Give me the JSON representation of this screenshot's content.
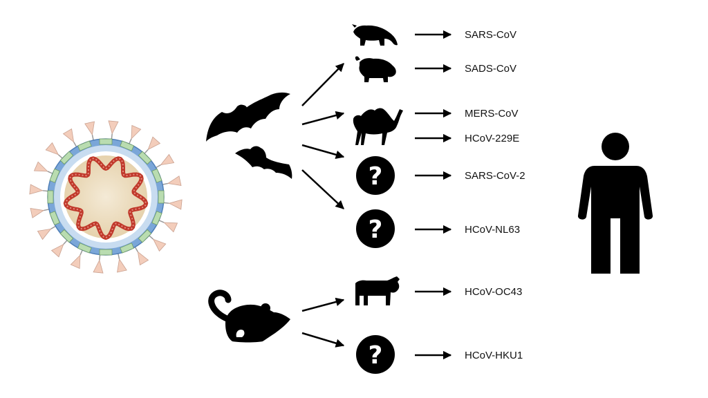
{
  "colors": {
    "ink": "#000000",
    "envelope_outer": "#7aa6d8",
    "envelope_inner": "#c8dcf0",
    "core": "#efe1c6",
    "rna": "#c0392b",
    "protein_green": "#b9dcb0",
    "spike": "#f3cdbb"
  },
  "icons": {
    "virus": "coronavirus-illustration",
    "bat_large": "bat-icon",
    "bat_small": "bat-icon",
    "rodent": "rodent-icon",
    "civet": "civet-icon",
    "pig": "pig-icon",
    "camel": "camel-icon",
    "cow": "cow-icon",
    "unknown": "question-mark-icon",
    "human": "human-icon"
  },
  "hosts": [
    {
      "id": "civet",
      "icon": "civet-icon",
      "viruses": [
        "SARS-CoV"
      ]
    },
    {
      "id": "pig",
      "icon": "pig-icon",
      "viruses": [
        "SADS-CoV"
      ]
    },
    {
      "id": "camel",
      "icon": "camel-icon",
      "viruses": [
        "MERS-CoV",
        "HCoV-229E"
      ]
    },
    {
      "id": "unknown-1",
      "icon": "question-mark-icon",
      "symbol": "?",
      "viruses": [
        "SARS-CoV-2"
      ]
    },
    {
      "id": "unknown-2",
      "icon": "question-mark-icon",
      "symbol": "?",
      "viruses": [
        "HCoV-NL63"
      ]
    },
    {
      "id": "cow",
      "icon": "cow-icon",
      "viruses": [
        "HCoV-OC43"
      ]
    },
    {
      "id": "unknown-3",
      "icon": "question-mark-icon",
      "symbol": "?",
      "viruses": [
        "HCoV-HKU1"
      ]
    }
  ]
}
